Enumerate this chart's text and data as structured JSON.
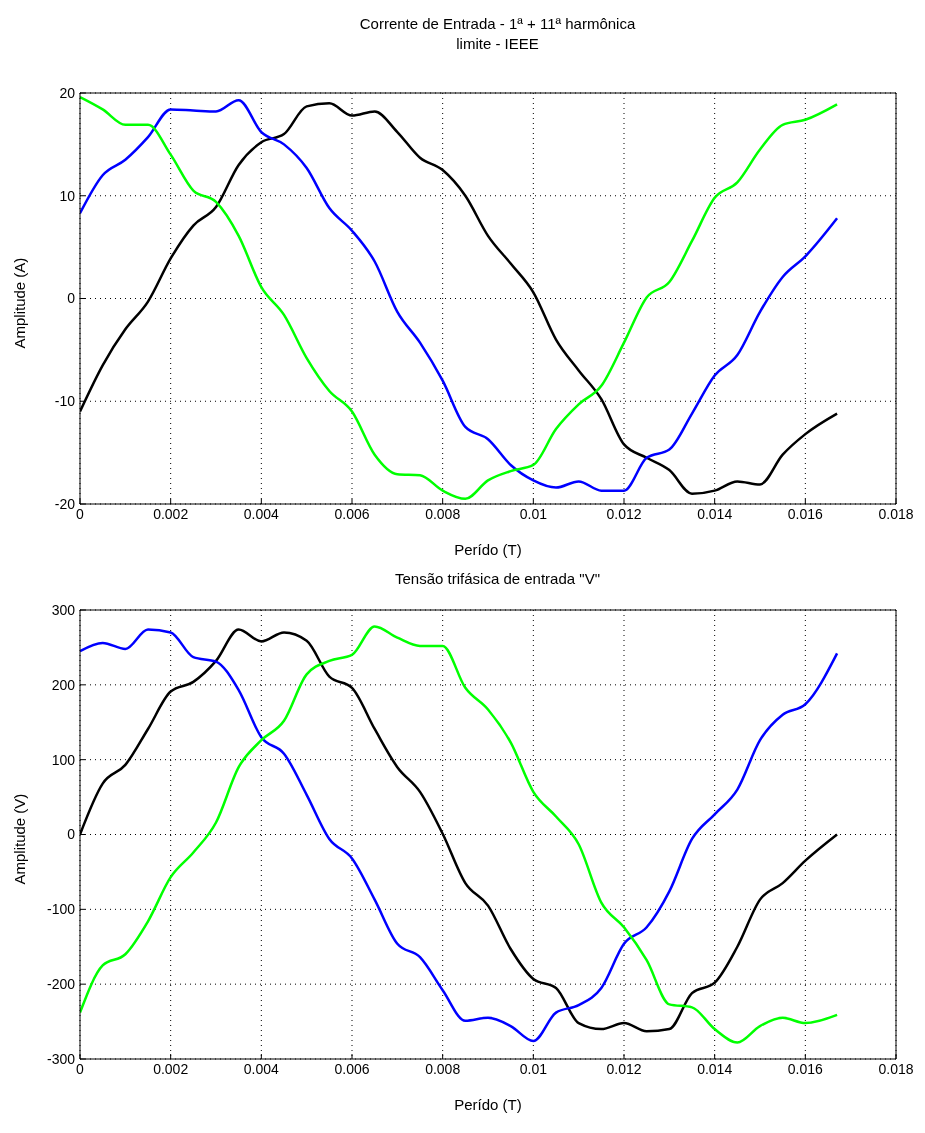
{
  "chart_data": [
    {
      "type": "line",
      "title": "Corrente de Entrada - 1ª + 11ª harmônica\nlimite - IEEE",
      "xlabel": "Perído (T)",
      "ylabel": "Amplitude (A)",
      "x": [
        0,
        0.0005,
        0.001,
        0.0015,
        0.002,
        0.0025,
        0.003,
        0.0035,
        0.004,
        0.0045,
        0.005,
        0.0055,
        0.006,
        0.0065,
        0.007,
        0.0075,
        0.008,
        0.0085,
        0.009,
        0.0095,
        0.01,
        0.0105,
        0.011,
        0.0115,
        0.012,
        0.0125,
        0.013,
        0.0135,
        0.014,
        0.0145,
        0.015,
        0.0155,
        0.016,
        0.0167
      ],
      "series": [
        {
          "color": "#000000",
          "values": [
            -11,
            -6.5,
            -3,
            -0.3,
            3.9,
            7.1,
            8.9,
            13,
            15.2,
            16,
            18.7,
            19,
            17.8,
            18.2,
            16.2,
            13.7,
            12.5,
            10,
            6.1,
            3.4,
            0.6,
            -4,
            -7,
            -9.8,
            -14.2,
            -15.5,
            -16.7,
            -19,
            -18.7,
            -17.8,
            -18.1,
            -15.2,
            -13.2,
            -11.2
          ]
        },
        {
          "color": "#0000ff",
          "values": [
            8.3,
            12,
            13.5,
            15.7,
            18.4,
            18.3,
            18.2,
            19.3,
            16.2,
            15,
            12.7,
            8.8,
            6.6,
            3.6,
            -1.3,
            -4.3,
            -8,
            -12.5,
            -13.7,
            -16.2,
            -17.7,
            -18.4,
            -17.8,
            -18.7,
            -18.7,
            -15.5,
            -14.7,
            -11.2,
            -7.5,
            -5.5,
            -1.3,
            2.1,
            4.1,
            7.8
          ]
        },
        {
          "color": "#00ff00",
          "values": [
            19.6,
            18.4,
            16.9,
            16.9,
            14,
            10.5,
            9.4,
            6.1,
            1.1,
            -1.6,
            -5.8,
            -9,
            -11,
            -15.2,
            -17.1,
            -17.2,
            -18.7,
            -19.5,
            -17.7,
            -16.8,
            -16.2,
            -12.7,
            -10.3,
            -8.5,
            -4.3,
            0.1,
            1.6,
            5.6,
            9.8,
            11.3,
            14.5,
            16.9,
            17.4,
            18.9
          ]
        }
      ],
      "xlim": [
        0,
        0.018
      ],
      "xticks": [
        0,
        0.002,
        0.004,
        0.006,
        0.008,
        0.01,
        0.012,
        0.014,
        0.016,
        0.018
      ],
      "ylim": [
        -20,
        20
      ],
      "yticks": [
        -20,
        -10,
        0,
        10,
        20
      ],
      "grid": true
    },
    {
      "type": "line",
      "title": "Tensão trifásica de entrada \"V\"",
      "xlabel": "Perído (T)",
      "ylabel": "Amplitude (V)",
      "x": [
        0,
        0.0005,
        0.001,
        0.0015,
        0.002,
        0.0025,
        0.003,
        0.0035,
        0.004,
        0.0045,
        0.005,
        0.0055,
        0.006,
        0.0065,
        0.007,
        0.0075,
        0.008,
        0.0085,
        0.009,
        0.0095,
        0.01,
        0.0105,
        0.011,
        0.0115,
        0.012,
        0.0125,
        0.013,
        0.0135,
        0.014,
        0.0145,
        0.015,
        0.0155,
        0.016,
        0.0167
      ],
      "series": [
        {
          "color": "#000000",
          "values": [
            0,
            68,
            93,
            141,
            191,
            204,
            232,
            274,
            258,
            270,
            259,
            211,
            196,
            141,
            90,
            57,
            1,
            -65,
            -95,
            -153,
            -193,
            -205,
            -252,
            -260,
            -252,
            -263,
            -260,
            -212,
            -198,
            -150,
            -87,
            -65,
            -35,
            0
          ]
        },
        {
          "color": "#0000ff",
          "values": [
            245,
            256,
            248,
            274,
            270,
            237,
            231,
            193,
            130,
            108,
            53,
            -6,
            -32,
            -87,
            -146,
            -164,
            -208,
            -249,
            -245,
            -256,
            -276,
            -238,
            -228,
            -205,
            -146,
            -124,
            -76,
            -6,
            27,
            60,
            126,
            160,
            174,
            242
          ]
        },
        {
          "color": "#00ff00",
          "values": [
            -238,
            -175,
            -160,
            -116,
            -57,
            -24,
            16,
            90,
            126,
            152,
            214,
            232,
            240,
            278,
            263,
            252,
            252,
            196,
            167,
            123,
            57,
            24,
            -13,
            -91,
            -124,
            -168,
            -227,
            -231,
            -260,
            -278,
            -256,
            -245,
            -252,
            -241
          ]
        }
      ],
      "xlim": [
        0,
        0.018
      ],
      "xticks": [
        0,
        0.002,
        0.004,
        0.006,
        0.008,
        0.01,
        0.012,
        0.014,
        0.016,
        0.018
      ],
      "ylim": [
        -300,
        300
      ],
      "yticks": [
        -300,
        -200,
        -100,
        0,
        100,
        200,
        300
      ],
      "grid": true
    }
  ]
}
